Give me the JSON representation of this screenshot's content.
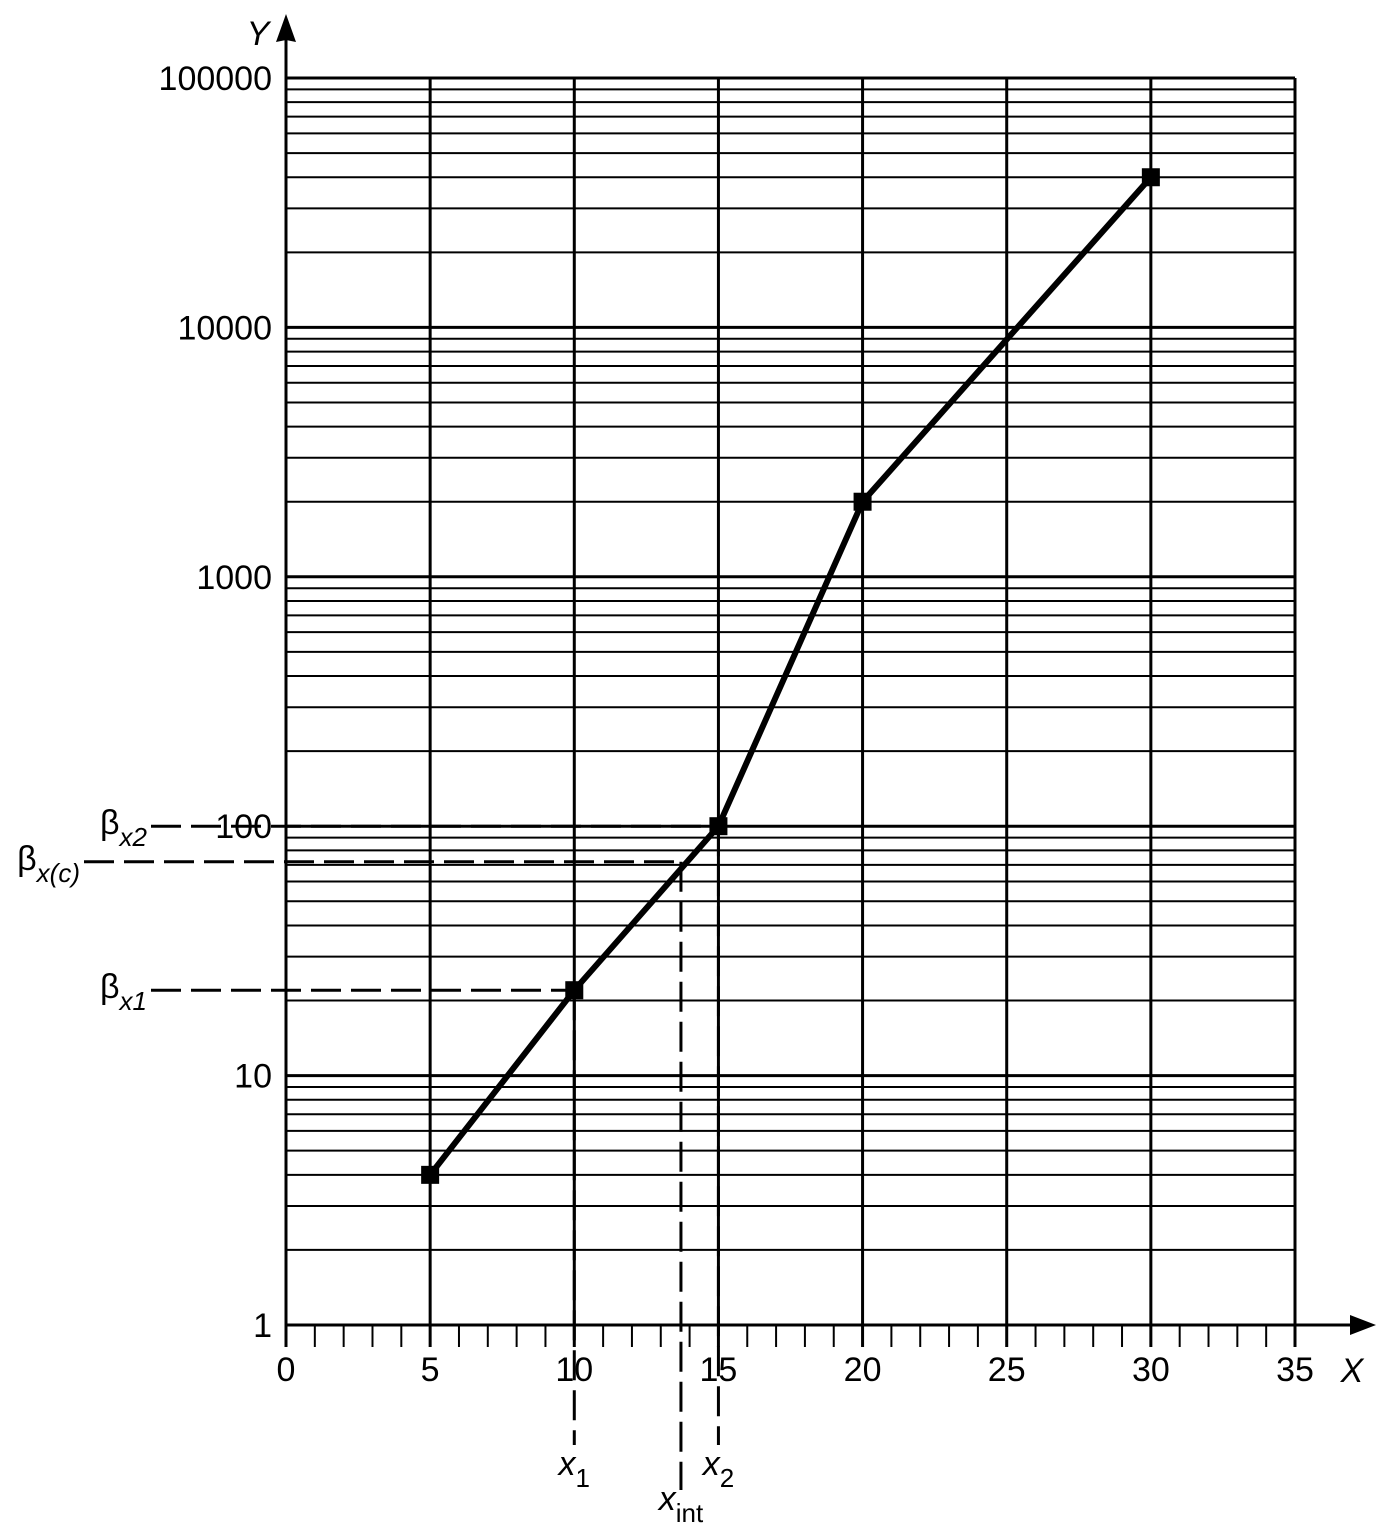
{
  "chart_data": {
    "type": "line",
    "x_label": "X",
    "y_label": "Y",
    "x": [
      5,
      10,
      15,
      20,
      30
    ],
    "series": [
      {
        "color": "#000000",
        "marker": "square",
        "values": [
          4,
          22,
          100,
          2000,
          40000
        ]
      }
    ],
    "xlim": [
      0,
      35
    ],
    "xticks": [
      0,
      5,
      10,
      15,
      20,
      25,
      30,
      35
    ],
    "ylim": [
      1,
      100000
    ],
    "yticks": [
      1,
      10,
      100,
      1000,
      10000,
      100000
    ],
    "y_scale": "log",
    "grid": true,
    "x_minor_tick_interval": 1,
    "y_ref_lines": [
      {
        "y": 100,
        "x_end": 15,
        "label": "β",
        "sub": "x2"
      },
      {
        "y": 72,
        "x_end": 13.7,
        "label": "β",
        "sub": "x(c)"
      },
      {
        "y": 22,
        "x_end": 10,
        "label": "β",
        "sub": "x1"
      }
    ],
    "x_ref_lines": [
      {
        "x": 10,
        "y_start": 22,
        "label": "x",
        "sub": "1"
      },
      {
        "x": 13.7,
        "y_start": 72,
        "label": "x",
        "sub": "int"
      },
      {
        "x": 15,
        "y_start": 100,
        "label": "x",
        "sub": "2"
      }
    ]
  }
}
